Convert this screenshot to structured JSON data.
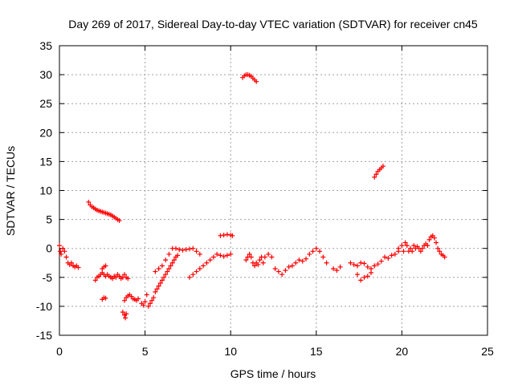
{
  "chart_data": {
    "type": "scatter",
    "title": "Day 269 of 2017, Sidereal Day-to-day VTEC variation (SDTVAR) for receiver cn45",
    "xlabel": "GPS time / hours",
    "ylabel": "SDTVAR / TECUs",
    "xlim": [
      0,
      25
    ],
    "ylim": [
      -15,
      35
    ],
    "xticks": [
      0,
      5,
      10,
      15,
      20,
      25
    ],
    "yticks": [
      -15,
      -10,
      -5,
      0,
      5,
      10,
      15,
      20,
      25,
      30,
      35
    ],
    "grid": true,
    "marker": "+",
    "color": "#ff0000",
    "series": [
      {
        "name": "SDTVAR",
        "x": [
          0.0,
          0.05,
          0.1,
          0.2,
          0.3,
          0.4,
          0.5,
          0.6,
          0.7,
          0.8,
          0.9,
          1.0,
          1.1,
          1.7,
          1.8,
          1.9,
          2.0,
          2.1,
          2.2,
          2.3,
          2.4,
          2.5,
          2.6,
          2.7,
          2.8,
          2.9,
          3.0,
          3.1,
          3.2,
          3.3,
          3.4,
          3.5,
          2.1,
          2.2,
          2.3,
          2.4,
          2.5,
          2.6,
          2.7,
          2.5,
          2.6,
          2.7,
          2.8,
          2.9,
          3.0,
          3.1,
          3.2,
          3.3,
          3.4,
          3.5,
          3.6,
          3.7,
          3.8,
          3.9,
          4.0,
          2.5,
          2.6,
          2.7,
          3.7,
          3.8,
          3.85,
          3.9,
          3.8,
          3.9,
          4.0,
          4.1,
          4.2,
          4.3,
          4.4,
          4.5,
          4.6,
          4.8,
          4.9,
          5.0,
          5.1,
          5.2,
          5.3,
          5.4,
          5.5,
          5.6,
          5.7,
          5.8,
          5.9,
          6.0,
          6.1,
          6.2,
          6.3,
          6.4,
          6.5,
          6.6,
          6.7,
          6.8,
          6.9,
          5.6,
          5.8,
          6.0,
          6.2,
          6.4,
          6.6,
          6.8,
          7.0,
          7.2,
          7.4,
          7.6,
          7.8,
          8.0,
          8.2,
          7.6,
          7.8,
          8.0,
          8.2,
          8.4,
          8.6,
          8.8,
          9.0,
          9.2,
          9.4,
          9.6,
          9.8,
          10.0,
          9.4,
          9.6,
          9.8,
          10.0,
          10.1,
          10.7,
          10.8,
          10.9,
          11.0,
          11.1,
          11.2,
          11.3,
          11.4,
          11.5,
          18.4,
          18.5,
          18.6,
          18.7,
          18.8,
          18.9,
          10.9,
          11.0,
          11.1,
          11.2,
          11.3,
          11.4,
          11.5,
          11.6,
          11.7,
          11.8,
          11.9,
          12.0,
          12.2,
          12.4,
          12.6,
          12.8,
          13.0,
          13.2,
          13.4,
          13.6,
          13.8,
          14.0,
          14.2,
          14.4,
          14.6,
          14.8,
          15.0,
          15.2,
          15.4,
          15.6,
          16.0,
          16.2,
          16.4,
          17.0,
          17.2,
          17.4,
          17.6,
          17.8,
          18.0,
          18.2,
          18.4,
          18.6,
          18.8,
          19.0,
          19.2,
          19.4,
          19.6,
          19.8,
          17.4,
          17.6,
          17.8,
          18.0,
          18.2,
          19.8,
          20.0,
          20.1,
          20.2,
          20.3,
          20.4,
          20.5,
          20.6,
          20.7,
          20.8,
          20.9,
          21.0,
          21.1,
          21.2,
          21.3,
          21.4,
          21.5,
          21.6,
          21.7,
          21.8,
          21.9,
          22.0,
          22.1,
          22.2,
          22.3,
          22.4,
          22.5
        ],
        "y": [
          0.5,
          -0.5,
          -1,
          0,
          -0.5,
          -1.5,
          -2.5,
          -2.8,
          -2.5,
          -3,
          -3.2,
          -3,
          -3.3,
          8,
          7.5,
          7.2,
          7,
          6.8,
          6.6,
          6.5,
          6.4,
          6.3,
          6.2,
          6.1,
          6,
          5.9,
          5.8,
          5.6,
          5.4,
          5.2,
          5,
          4.8,
          -5.5,
          -5.0,
          -4.8,
          -4.5,
          -4.2,
          -4.5,
          -4.8,
          -3.5,
          -3.2,
          -3.0,
          -4.5,
          -4.8,
          -5,
          -5.2,
          -4.8,
          -5,
          -4.5,
          -4.8,
          -5.2,
          -5,
          -4.5,
          -5,
          -5.2,
          -8.8,
          -8.5,
          -8.6,
          -11,
          -11.5,
          -12,
          -11.3,
          -9,
          -8.5,
          -8.2,
          -8.0,
          -8.3,
          -8.7,
          -8.8,
          -9,
          -8.7,
          -9.5,
          -9.8,
          -9.2,
          -8,
          -10,
          -9.5,
          -9,
          -8.5,
          -7.5,
          -7,
          -6.5,
          -6,
          -5.5,
          -5,
          -4.5,
          -4,
          -3.5,
          -3,
          -2.5,
          -2,
          -1.5,
          -1.2,
          -4,
          -3.5,
          -3,
          -2,
          -1,
          0,
          0,
          -0.2,
          -0.3,
          -0.2,
          -0.1,
          0,
          -0.5,
          -1,
          -5,
          -4.5,
          -4,
          -3.5,
          -3,
          -2.5,
          -2,
          -1.5,
          -1,
          -1.2,
          -1.4,
          -1.2,
          -1,
          2.2,
          2.3,
          2.4,
          2.3,
          2.2,
          29.5,
          29.8,
          30,
          30,
          29.9,
          29.7,
          29.4,
          29.1,
          28.8,
          12.3,
          12.8,
          13.3,
          13.6,
          13.9,
          14.2,
          -2,
          -1.5,
          -1,
          -1.5,
          -2.5,
          -3,
          -2.5,
          -2.8,
          -2,
          -1.5,
          -2.5,
          -1.5,
          -1,
          -1.5,
          -3.5,
          -4,
          -4.5,
          -3.8,
          -3.2,
          -3,
          -2.5,
          -2,
          -2.2,
          -1.8,
          -1,
          -0.5,
          0,
          -0.5,
          -1.5,
          -2.5,
          -3.5,
          -3.8,
          -3.2,
          -2.5,
          -2.8,
          -3,
          -2.5,
          -2.6,
          -3.2,
          -3.5,
          -3,
          -2.7,
          -2.2,
          -1.5,
          -1.7,
          -1.2,
          -1.0,
          -0.5,
          -4.5,
          -5.5,
          -5,
          -4.8,
          -4.2,
          0,
          0.5,
          -0.5,
          1,
          0.5,
          -0.5,
          0,
          -0.5,
          0.5,
          0,
          0.3,
          0,
          -0.5,
          0,
          0.5,
          0.8,
          0.5,
          1.5,
          2,
          2.2,
          1.8,
          1,
          0,
          -0.5,
          -1,
          -1.2,
          -1.5
        ]
      }
    ]
  }
}
